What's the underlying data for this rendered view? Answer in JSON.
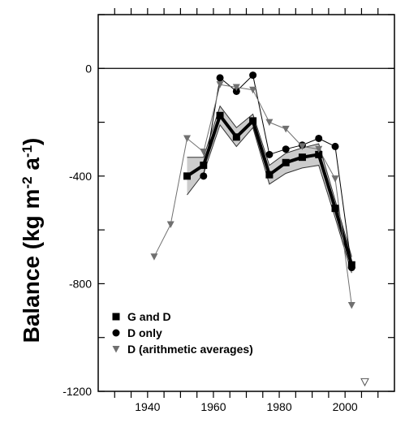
{
  "chart_data": {
    "type": "line",
    "title": "",
    "xlabel": "",
    "ylabel": "Balance (kg m-2 a-1)",
    "ylabel_parts": {
      "base": "Balance (kg m",
      "exp1": "-2",
      "mid": " a",
      "exp2": "-1",
      "end": ")"
    },
    "xlim": [
      1925,
      2015
    ],
    "ylim": [
      -1200,
      200
    ],
    "x_ticks": [
      1940,
      1960,
      1980,
      2000
    ],
    "y_ticks": [
      0,
      -400,
      -800,
      -1200
    ],
    "grid": false,
    "zero_line": 0,
    "legend_position": "bottom-left",
    "series": [
      {
        "name": "G and D",
        "marker": "square",
        "color": "#000000",
        "x": [
          1952,
          1957,
          1962,
          1967,
          1972,
          1977,
          1982,
          1987,
          1992,
          1997,
          2002
        ],
        "y": [
          -400,
          -360,
          -175,
          -255,
          -195,
          -395,
          -350,
          -330,
          -320,
          -520,
          -730
        ]
      },
      {
        "name": "D only",
        "marker": "circle",
        "color": "#000000",
        "x": [
          1957,
          1962,
          1967,
          1972,
          1977,
          1982,
          1987,
          1992,
          1997,
          2002
        ],
        "y": [
          -400,
          -35,
          -85,
          -25,
          -320,
          -300,
          -285,
          -260,
          -290,
          -740
        ]
      },
      {
        "name": "D (arithmetic averages)",
        "marker": "triangle-down",
        "color": "#707070",
        "x": [
          1942,
          1947,
          1952,
          1957,
          1962,
          1967,
          1972,
          1977,
          1982,
          1987,
          1992,
          1997,
          2002
        ],
        "y": [
          -700,
          -580,
          -260,
          -310,
          -60,
          -70,
          -80,
          -200,
          -225,
          -290,
          -300,
          -410,
          -880
        ]
      }
    ],
    "uncertainty_band": {
      "x": [
        1952,
        1957,
        1962,
        1967,
        1972,
        1977,
        1982,
        1987,
        1992,
        1997,
        2002
      ],
      "upper": [
        -330,
        -330,
        -140,
        -220,
        -170,
        -360,
        -315,
        -295,
        -280,
        -490,
        -700
      ],
      "lower": [
        -470,
        -390,
        -210,
        -290,
        -220,
        -430,
        -390,
        -370,
        -360,
        -555,
        -760
      ]
    },
    "annotations": [
      {
        "symbol": "open-triangle-down",
        "x": 2006,
        "y": -1165
      }
    ]
  }
}
